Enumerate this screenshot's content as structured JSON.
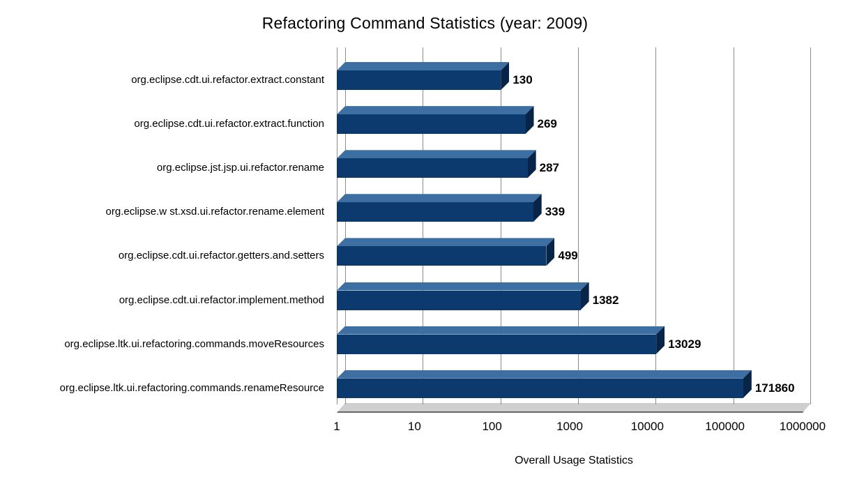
{
  "chart_data": {
    "type": "bar",
    "orientation": "horizontal",
    "x_scale": "log",
    "title": "Refactoring Command Statistics (year: 2009)",
    "xlabel": "Overall Usage Statistics",
    "ylabel": "",
    "xlim": [
      1,
      1000000
    ],
    "x_ticks": [
      1,
      10,
      100,
      1000,
      10000,
      100000,
      1000000
    ],
    "grid": true,
    "legend": "none",
    "categories": [
      "org.eclipse.cdt.ui.refactor.extract.constant",
      "org.eclipse.cdt.ui.refactor.extract.function",
      "org.eclipse.jst.jsp.ui.refactor.rename",
      "org.eclipse.w st.xsd.ui.refactor.rename.element",
      "org.eclipse.cdt.ui.refactor.getters.and.setters",
      "org.eclipse.cdt.ui.refactor.implement.method",
      "org.eclipse.ltk.ui.refactoring.commands.moveResources",
      "org.eclipse.ltk.ui.refactoring.commands.renameResource"
    ],
    "values": [
      130,
      269,
      287,
      339,
      499,
      1382,
      13029,
      171860
    ],
    "value_labels": [
      "130",
      "269",
      "287",
      "339",
      "499",
      "1382",
      "13029",
      "171860"
    ],
    "colors": {
      "bar_front": "#0d3a6e",
      "bar_top": "#3e6fa3",
      "bar_side": "#082447",
      "gridline": "#8c8c8c",
      "floor": "#cfcfcf",
      "background": "#ffffff",
      "text": "#000000"
    }
  }
}
